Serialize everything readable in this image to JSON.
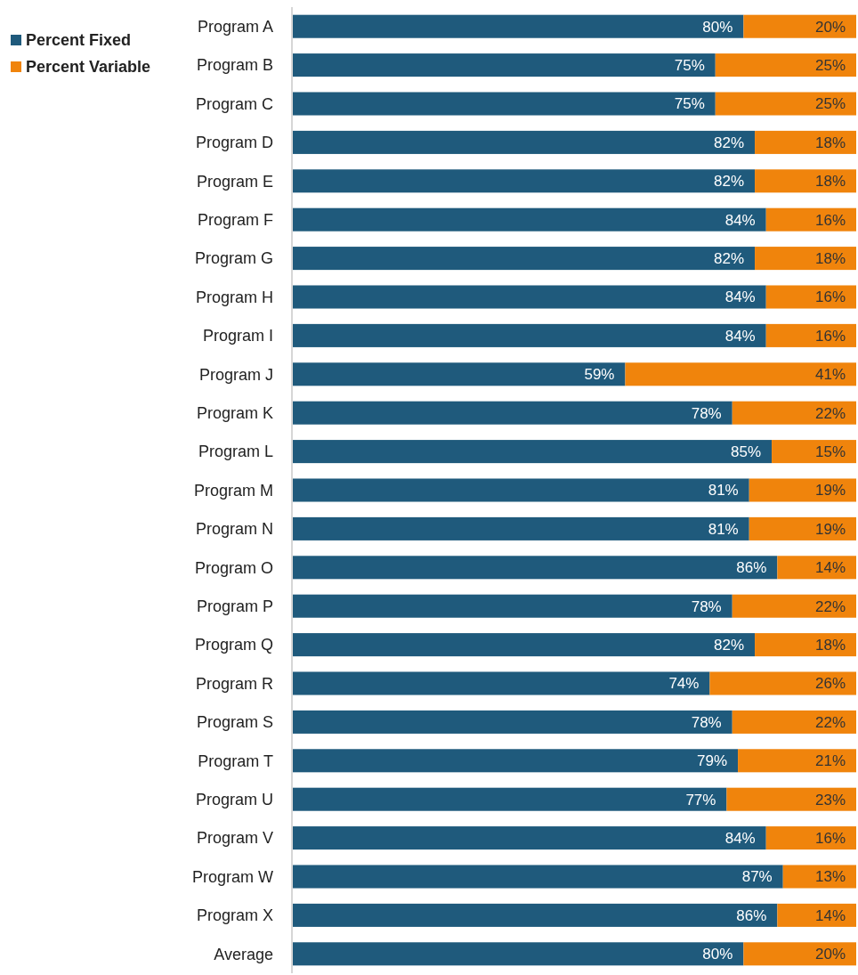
{
  "chart_data": {
    "type": "bar",
    "orientation": "horizontal",
    "stacked": true,
    "legend": "top left",
    "categories": [
      "Program A",
      "Program B",
      "Program C",
      "Program D",
      "Program E",
      "Program F",
      "Program G",
      "Program H",
      "Program I",
      "Program J",
      "Program K",
      "Program L",
      "Program M",
      "Program N",
      "Program O",
      "Program P",
      "Program Q",
      "Program R",
      "Program S",
      "Program T",
      "Program U",
      "Program V",
      "Program W",
      "Program X",
      "Average"
    ],
    "series": [
      {
        "name": "Percent Fixed",
        "color": "#1f5a7c",
        "values": [
          80,
          75,
          75,
          82,
          82,
          84,
          82,
          84,
          84,
          59,
          78,
          85,
          81,
          81,
          86,
          78,
          82,
          74,
          78,
          79,
          77,
          84,
          87,
          86,
          80
        ],
        "value_labels": [
          "80%",
          "75%",
          "75%",
          "82%",
          "82%",
          "84%",
          "82%",
          "84%",
          "84%",
          "59%",
          "78%",
          "85%",
          "81%",
          "81%",
          "86%",
          "78%",
          "82%",
          "74%",
          "78%",
          "79%",
          "77%",
          "84%",
          "87%",
          "86%",
          "80%"
        ]
      },
      {
        "name": "Percent Variable",
        "color": "#f0840c",
        "values": [
          20,
          25,
          25,
          18,
          18,
          16,
          18,
          16,
          16,
          41,
          22,
          15,
          19,
          19,
          14,
          22,
          18,
          26,
          22,
          21,
          23,
          16,
          13,
          14,
          20
        ],
        "value_labels": [
          "20%",
          "25%",
          "25%",
          "18%",
          "18%",
          "16%",
          "18%",
          "16%",
          "16%",
          "41%",
          "22%",
          "15%",
          "19%",
          "19%",
          "14%",
          "22%",
          "18%",
          "26%",
          "22%",
          "21%",
          "23%",
          "16%",
          "13%",
          "14%",
          "20%"
        ]
      }
    ]
  }
}
